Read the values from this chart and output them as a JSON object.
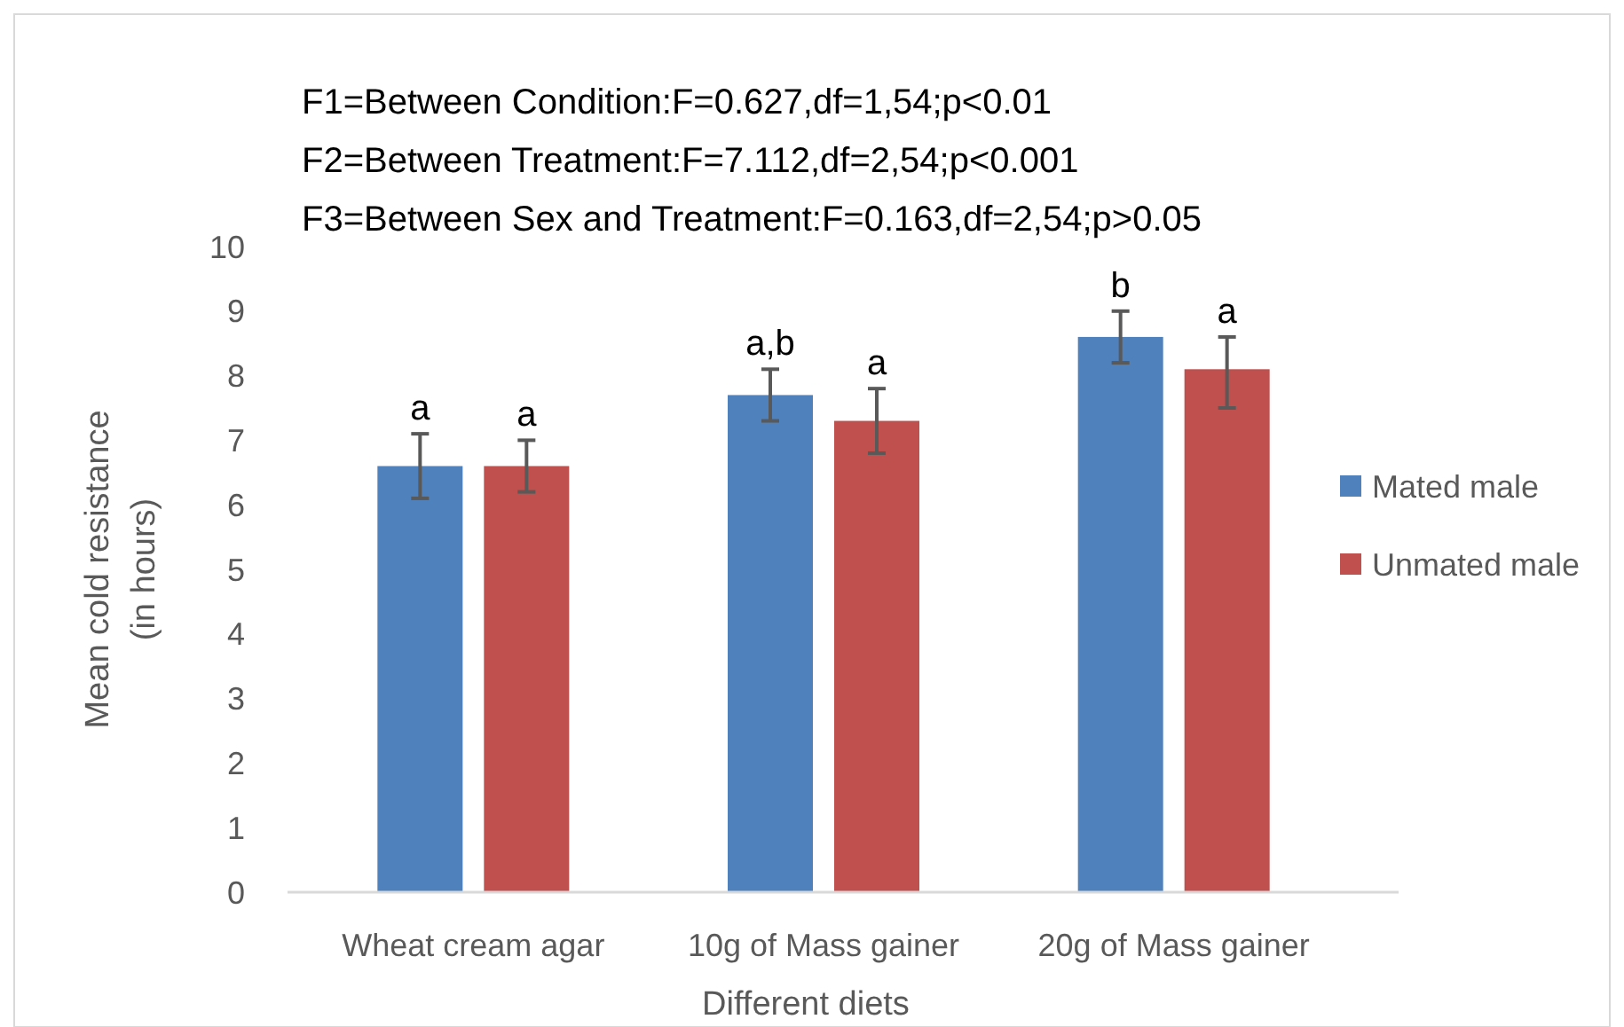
{
  "chart_data": {
    "type": "bar",
    "xlabel": "Different diets",
    "ylabel": "Mean cold resistance\n(in hours)",
    "annotations": [
      "F1=Between Condition:F=0.627,df=1,54;p<0.01",
      "F2=Between Treatment:F=7.112,df=2,54;p<0.001",
      "F3=Between Sex and Treatment:F=0.163,df=2,54;p>0.05"
    ],
    "categories": [
      "Wheat cream agar",
      "10g of Mass gainer",
      "20g of Mass gainer"
    ],
    "series": [
      {
        "name": "Mated male",
        "color": "#4f81bd",
        "values": [
          6.6,
          7.7,
          8.6
        ],
        "errors": [
          [
            6.1,
            7.1
          ],
          [
            7.3,
            8.1
          ],
          [
            8.2,
            9.0
          ]
        ],
        "value_labels": [
          "a",
          "a,b",
          "b"
        ]
      },
      {
        "name": "Unmated male",
        "color": "#c0504d",
        "values": [
          6.6,
          7.3,
          8.1
        ],
        "errors": [
          [
            6.2,
            7.0
          ],
          [
            6.8,
            7.8
          ],
          [
            7.5,
            8.6
          ]
        ],
        "value_labels": [
          "a",
          "a",
          "a"
        ]
      }
    ],
    "ylim": [
      0,
      10
    ],
    "yticks": [
      0,
      1,
      2,
      3,
      4,
      5,
      6,
      7,
      8,
      9,
      10
    ],
    "grid": false,
    "legend": "right"
  }
}
